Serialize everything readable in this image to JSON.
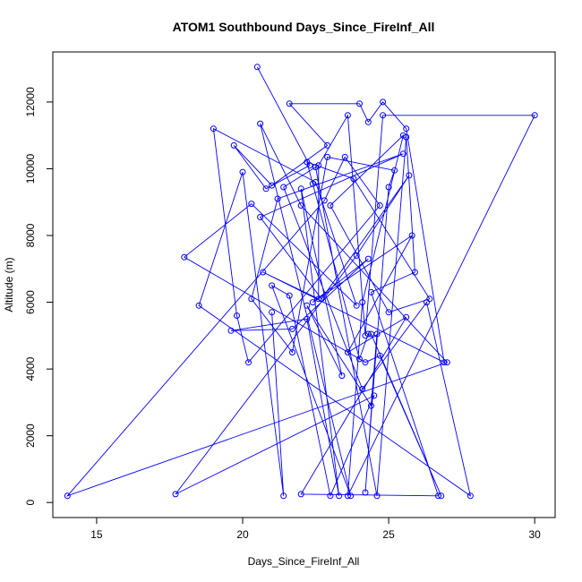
{
  "chart_data": {
    "type": "line",
    "title": "ATOM1 Southbound Days_Since_FireInf_All",
    "xlabel": "Days_Since_FireInf_All",
    "ylabel": "Altitude (m)",
    "xlim": [
      13.5,
      30.7
    ],
    "ylim": [
      -450,
      13500
    ],
    "xticks": [
      15,
      20,
      25,
      30
    ],
    "yticks": [
      0,
      2000,
      4000,
      6000,
      8000,
      10000,
      12000
    ],
    "grid": false,
    "series": [
      {
        "color": "#0000ff",
        "marker": "open-circle",
        "line": true,
        "x": [
          20.5,
          22.3,
          20.8,
          19.7,
          21.0,
          22.9,
          21.6,
          24.0,
          24.3,
          24.8,
          25.6,
          26.9,
          20.7,
          22.6,
          22.6,
          23.6,
          24.2,
          24.8,
          30.0,
          23.6,
          24.1,
          25.5,
          23.0,
          25.0,
          26.4,
          23.8,
          22.2,
          22.4,
          24.0,
          24.3,
          24.4,
          26.8,
          24.7,
          24.2,
          18.0,
          20.3,
          23.9,
          22.5,
          19.0,
          19.8,
          20.2,
          24.7,
          23.5,
          22.8,
          14.0,
          27.0,
          22.0,
          20.6,
          23.7,
          21.0,
          21.6,
          23.0,
          24.5,
          17.7,
          23.9,
          25.7,
          22.7,
          20.6,
          25.5,
          21.2,
          20.3,
          21.7,
          22.9,
          25.2,
          25.0,
          24.2,
          24.6,
          24.4,
          22.2,
          23.4,
          22.0,
          23.3,
          22.2,
          19.6,
          21.7,
          24.3,
          22.4,
          25.8,
          23.6,
          25.6,
          22.0,
          26.7,
          24.4,
          25.9,
          25.6,
          24.6,
          22.5,
          21.4,
          24.1,
          26.3,
          27.8,
          18.5,
          20.0,
          21.4,
          21.0
        ],
        "y": [
          13050,
          10100,
          9400,
          10700,
          9500,
          10700,
          11950,
          11950,
          11400,
          12000,
          11200,
          4200,
          6900,
          6100,
          10100,
          11600,
          5000,
          11600,
          11600,
          200,
          6000,
          11000,
          8900,
          5700,
          6100,
          9700,
          10200,
          9550,
          4300,
          5050,
          5050,
          200,
          4400,
          4200,
          7350,
          8950,
          5900,
          9600,
          11200,
          5600,
          4200,
          8900,
          10350,
          9050,
          200,
          4200,
          8900,
          11350,
          200,
          6500,
          6200,
          200,
          3200,
          250,
          7400,
          9800,
          6100,
          8550,
          10450,
          9100,
          6100,
          4500,
          10350,
          9950,
          9450,
          300,
          5050,
          2900,
          5900,
          3800,
          9400,
          200,
          5500,
          5150,
          5200,
          7300,
          6000,
          8000,
          4500,
          5550,
          250,
          200,
          6300,
          6900,
          10950,
          200,
          10050,
          9450,
          3400,
          6000,
          200,
          5900,
          9900,
          200,
          5700
        ]
      }
    ]
  }
}
